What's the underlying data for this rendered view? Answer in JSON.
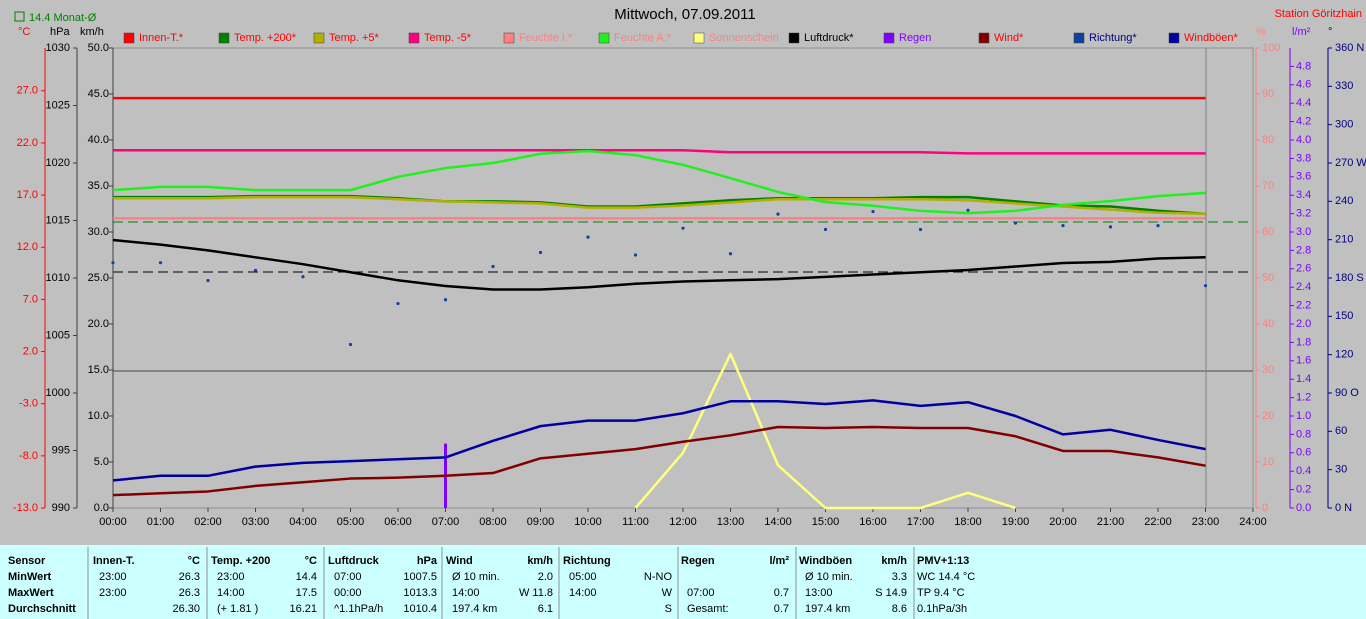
{
  "header": {
    "title": "Mittwoch, 07.09.2011",
    "station": "Station Göritzhain",
    "month_avg": "14.4 Monat-Ø"
  },
  "chart": {
    "x": [
      0,
      1,
      2,
      3,
      4,
      5,
      6,
      7,
      8,
      9,
      10,
      11,
      12,
      13,
      14,
      15,
      16,
      17,
      18,
      19,
      20,
      21,
      22,
      23
    ],
    "xlim": [
      0,
      24
    ],
    "xticks": [
      {
        "value": 0,
        "label": "00:00"
      },
      {
        "value": 1,
        "label": "01:00"
      },
      {
        "value": 2,
        "label": "02:00"
      },
      {
        "value": 3,
        "label": "03:00"
      },
      {
        "value": 4,
        "label": "04:00"
      },
      {
        "value": 5,
        "label": "05:00"
      },
      {
        "value": 6,
        "label": "06:00"
      },
      {
        "value": 7,
        "label": "07:00"
      },
      {
        "value": 8,
        "label": "08:00"
      },
      {
        "value": 9,
        "label": "09:00"
      },
      {
        "value": 10,
        "label": "10:00"
      },
      {
        "value": 11,
        "label": "11:00"
      },
      {
        "value": 12,
        "label": "12:00"
      },
      {
        "value": 13,
        "label": "13:00"
      },
      {
        "value": 14,
        "label": "14:00"
      },
      {
        "value": 15,
        "label": "15:00"
      },
      {
        "value": 16,
        "label": "16:00"
      },
      {
        "value": 17,
        "label": "17:00"
      },
      {
        "value": 18,
        "label": "18:00"
      },
      {
        "value": 19,
        "label": "19:00"
      },
      {
        "value": 20,
        "label": "20:00"
      },
      {
        "value": 21,
        "label": "21:00"
      },
      {
        "value": 22,
        "label": "22:00"
      },
      {
        "value": 23,
        "label": "23:00"
      },
      {
        "value": 24,
        "label": "24:00"
      }
    ],
    "axes": [
      {
        "label": "°C",
        "color": "#ff0000",
        "lim": [
          -13,
          31.1
        ],
        "ticks": [
          {
            "value": -13,
            "label": "-13.0"
          },
          {
            "value": -8,
            "label": "-8.0"
          },
          {
            "value": -3,
            "label": "-3.0"
          },
          {
            "value": 2,
            "label": "2.0"
          },
          {
            "value": 7,
            "label": "7.0"
          },
          {
            "value": 12,
            "label": "12.0"
          },
          {
            "value": 17,
            "label": "17.0"
          },
          {
            "value": 22,
            "label": "22.0"
          },
          {
            "value": 27,
            "label": "27.0"
          }
        ]
      },
      {
        "label": "hPa",
        "color": "#000000",
        "lim": [
          990,
          1030
        ],
        "ticks": [
          990,
          995,
          1000,
          1005,
          1010,
          1015,
          1020,
          1025,
          1030
        ]
      },
      {
        "label": "km/h",
        "color": "#000000",
        "lim": [
          0,
          50
        ],
        "ticks": [
          {
            "value": 0,
            "label": "0.0"
          },
          {
            "value": 5,
            "label": "5.0"
          },
          {
            "value": 10,
            "label": "10.0"
          },
          {
            "value": 15,
            "label": "15.0"
          },
          {
            "value": 20,
            "label": "20.0"
          },
          {
            "value": 25,
            "label": "25.0"
          },
          {
            "value": 30,
            "label": "30.0"
          },
          {
            "value": 35,
            "label": "35.0"
          },
          {
            "value": 40,
            "label": "40.0"
          },
          {
            "value": 45,
            "label": "45.0"
          },
          {
            "value": 50,
            "label": "50.0"
          }
        ]
      },
      {
        "label": "%",
        "color": "#ff8080",
        "lim": [
          0,
          100
        ],
        "ticks": [
          0,
          10,
          20,
          30,
          40,
          50,
          60,
          70,
          80,
          90,
          100
        ]
      },
      {
        "label": "l/m²",
        "color": "#8000ff",
        "lim": [
          0,
          5
        ],
        "ticks": [
          {
            "value": 0,
            "label": "0.0"
          },
          0.2,
          0.4,
          0.6,
          0.8,
          {
            "value": 1,
            "label": "1.0"
          },
          1.2,
          1.4,
          1.6,
          1.8,
          {
            "value": 2,
            "label": "2.0"
          },
          2.2,
          2.4,
          2.6,
          2.8,
          {
            "value": 3,
            "label": "3.0"
          },
          3.2,
          3.4,
          3.6,
          3.8,
          {
            "value": 4,
            "label": "4.0"
          },
          4.2,
          4.4,
          4.6,
          4.8
        ]
      },
      {
        "label": "°",
        "color": "#000080",
        "lim": [
          0,
          360
        ],
        "ticks": [
          {
            "value": 0,
            "label": "0 N"
          },
          30,
          60,
          {
            "value": 90,
            "label": "90 O"
          },
          120,
          150,
          {
            "value": 180,
            "label": "180 S"
          },
          210,
          240,
          {
            "value": 270,
            "label": "270 W"
          },
          300,
          330,
          {
            "value": 360,
            "label": "360 N"
          }
        ]
      }
    ],
    "series": [
      {
        "name": "Innen-T.*",
        "type": "line",
        "axis": "°C",
        "color": "#ff0000",
        "legend_color": "#ff0000",
        "values": [
          26.3,
          26.3,
          26.3,
          26.3,
          26.3,
          26.3,
          26.3,
          26.3,
          26.3,
          26.3,
          26.3,
          26.3,
          26.3,
          26.3,
          26.3,
          26.3,
          26.3,
          26.3,
          26.3,
          26.3,
          26.3,
          26.3,
          26.3,
          26.3
        ]
      },
      {
        "name": "Temp. +200*",
        "type": "line",
        "axis": "°C",
        "color": "#008000",
        "legend_color": "#ff0000",
        "values": [
          16.8,
          16.8,
          16.8,
          16.9,
          16.9,
          16.9,
          16.7,
          16.4,
          16.4,
          16.3,
          15.9,
          15.9,
          16.2,
          16.5,
          16.7,
          16.7,
          16.7,
          16.8,
          16.8,
          16.4,
          16.0,
          15.9,
          15.5,
          15.2
        ]
      },
      {
        "name": "Temp. +5*",
        "type": "line",
        "axis": "°C",
        "color": "#b0b000",
        "legend_color": "#ff0000",
        "values": [
          16.7,
          16.7,
          16.7,
          16.8,
          16.8,
          16.8,
          16.6,
          16.4,
          16.3,
          16.2,
          15.8,
          15.8,
          16.0,
          16.3,
          16.6,
          16.6,
          16.6,
          16.6,
          16.5,
          16.2,
          15.9,
          15.6,
          15.3,
          15.2
        ]
      },
      {
        "name": "Temp. -5*",
        "type": "line",
        "axis": "°C",
        "color": "#ff0080",
        "legend_color": "#ff0000",
        "values": [
          21.3,
          21.3,
          21.3,
          21.3,
          21.3,
          21.3,
          21.3,
          21.3,
          21.3,
          21.3,
          21.3,
          21.3,
          21.3,
          21.1,
          21.1,
          21.1,
          21.1,
          21.1,
          21.0,
          21.0,
          21.0,
          21.0,
          21.0,
          21.0
        ]
      },
      {
        "name": "Feuchte I.*",
        "type": "line",
        "axis": "%",
        "color": "#ff8080",
        "legend_color": "#ff8080",
        "values": [
          63,
          63,
          63,
          63,
          63,
          63,
          63,
          63,
          63,
          63,
          63,
          63,
          63,
          63,
          63,
          63,
          63,
          63,
          63,
          63,
          63,
          63,
          63,
          63
        ]
      },
      {
        "name": "Feuchte A.*",
        "type": "line",
        "axis": "%",
        "color": "#20f020",
        "legend_color": "#ff8080",
        "values": [
          69.1,
          69.8,
          69.8,
          69.1,
          69.1,
          69.1,
          72.0,
          73.9,
          75.0,
          77.0,
          77.6,
          76.7,
          74.6,
          71.7,
          68.7,
          66.5,
          65.7,
          64.6,
          64.1,
          64.6,
          65.9,
          66.7,
          67.8,
          68.5
        ]
      },
      {
        "name": "Sonnenschein",
        "type": "line",
        "axis": "%",
        "color": "#ffff80",
        "legend_color": "#ff8080",
        "values": [
          null,
          null,
          null,
          null,
          null,
          null,
          null,
          null,
          null,
          null,
          null,
          0,
          12.0,
          33.5,
          9.3,
          0,
          0,
          0,
          3.3,
          0,
          null,
          null,
          null,
          null
        ]
      },
      {
        "name": "Luftdruck*",
        "type": "line",
        "axis": "hPa",
        "color": "#000000",
        "legend_color": "#000000",
        "values": [
          1013.3,
          1012.9,
          1012.4,
          1011.8,
          1011.2,
          1010.5,
          1009.8,
          1009.3,
          1009.0,
          1009.0,
          1009.2,
          1009.5,
          1009.7,
          1009.8,
          1009.9,
          1010.1,
          1010.3,
          1010.5,
          1010.7,
          1011.0,
          1011.3,
          1011.4,
          1011.7,
          1011.8
        ]
      },
      {
        "name": "Regen",
        "type": "bar",
        "axis": "l/m²",
        "color": "#8000ff",
        "legend_color": "#8000ff",
        "values": [
          0,
          0,
          0,
          0,
          0,
          0,
          0,
          0.7,
          0,
          0,
          0,
          0,
          0,
          0,
          0,
          0,
          0,
          0,
          0,
          0,
          0,
          0,
          0,
          0
        ]
      },
      {
        "name": "Wind*",
        "type": "line",
        "axis": "km/h",
        "color": "#800000",
        "legend_color": "#ff0000",
        "values": [
          1.4,
          1.6,
          1.8,
          2.4,
          2.8,
          3.2,
          3.3,
          3.5,
          3.8,
          5.4,
          5.9,
          6.4,
          7.2,
          7.9,
          8.8,
          8.7,
          8.8,
          8.7,
          8.7,
          7.8,
          6.2,
          6.2,
          5.5,
          4.6
        ]
      },
      {
        "name": "Richtung*",
        "type": "scatter",
        "axis": "°",
        "color": "#1040a0",
        "legend_color": "#000080",
        "values": [
          192,
          192,
          178,
          186,
          181,
          128,
          160,
          163,
          189,
          200,
          212,
          198,
          219,
          199,
          230,
          218,
          232,
          218,
          233,
          223,
          221,
          220,
          221,
          174
        ]
      },
      {
        "name": "Windböen*",
        "type": "line",
        "axis": "km/h",
        "color": "#0000a0",
        "legend_color": "#ff0000",
        "values": [
          3.0,
          3.5,
          3.5,
          4.5,
          4.9,
          5.1,
          5.3,
          5.5,
          7.3,
          8.9,
          9.5,
          9.5,
          10.3,
          11.6,
          11.6,
          11.3,
          11.7,
          11.1,
          11.5,
          10.0,
          8.0,
          8.5,
          7.4,
          6.4
        ]
      }
    ]
  },
  "table": {
    "first_header": "Sensor",
    "row_labels": [
      "MinWert",
      "MaxWert",
      "Durchschnitt"
    ],
    "columns": [
      {
        "name": "Innen-T.",
        "unit": "°C",
        "rows": [
          [
            "23:00",
            "26.3"
          ],
          [
            "23:00",
            "26.3"
          ],
          [
            null,
            "26.30"
          ]
        ]
      },
      {
        "name": "Temp. +200",
        "unit": "°C",
        "rows": [
          [
            "23:00",
            "14.4"
          ],
          [
            "14:00",
            "17.5"
          ],
          [
            "(+ 1.81 )",
            "16.21"
          ]
        ]
      },
      {
        "name": "Luftdruck",
        "unit": "hPa",
        "rows": [
          [
            "07:00",
            "1007.5"
          ],
          [
            "00:00",
            "1013.3"
          ],
          [
            "^1.1hPa/h",
            "1010.4"
          ]
        ]
      },
      {
        "name": "Wind",
        "unit": "km/h",
        "rows": [
          [
            "Ø 10 min.",
            "2.0"
          ],
          [
            "14:00",
            "W 11.8"
          ],
          [
            "197.4 km",
            "6.1"
          ]
        ]
      },
      {
        "name": "Richtung",
        "rows": [
          [
            "05:00",
            "N-NO"
          ],
          [
            "14:00",
            "W"
          ],
          [
            null,
            "S"
          ]
        ]
      },
      {
        "name": "Regen",
        "unit": "l/m²",
        "rows": [
          [
            null,
            null
          ],
          [
            "07:00",
            "0.7"
          ],
          [
            "Gesamt:",
            "0.7"
          ]
        ]
      },
      {
        "name": "Windböen",
        "unit": "km/h",
        "rows": [
          [
            "Ø 10 min.",
            "3.3"
          ],
          [
            "13:00",
            "S 14.9"
          ],
          [
            "197.4 km",
            "8.6"
          ]
        ]
      },
      {
        "name": "PMV+1:13",
        "rows": [
          [
            "WC 14.4 °C"
          ],
          [
            "TP 9.4 °C"
          ],
          [
            "0.1hPa/3h"
          ]
        ]
      }
    ]
  }
}
